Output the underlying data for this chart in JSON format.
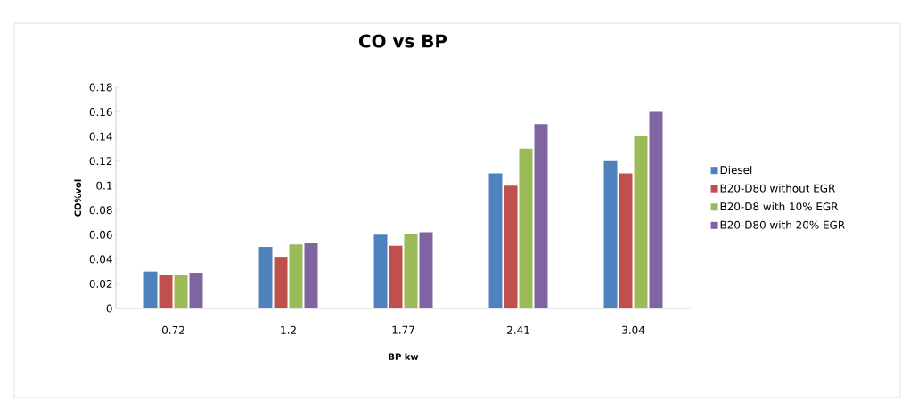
{
  "chart_data": {
    "type": "bar",
    "title": "CO vs BP",
    "xlabel": "BP kw",
    "ylabel": "CO%vol",
    "categories": [
      "0.72",
      "1.2",
      "1.77",
      "2.41",
      "3.04"
    ],
    "series": [
      {
        "name": "Diesel",
        "color": "#4f81bd",
        "values": [
          0.03,
          0.05,
          0.06,
          0.11,
          0.12
        ]
      },
      {
        "name": "B20-D80 without EGR",
        "color": "#c0504d",
        "values": [
          0.027,
          0.042,
          0.051,
          0.1,
          0.11
        ]
      },
      {
        "name": "B20-D8 with  10% EGR",
        "color": "#9bbb59",
        "values": [
          0.027,
          0.052,
          0.061,
          0.13,
          0.14
        ]
      },
      {
        "name": "B20-D80 with  20% EGR",
        "color": "#8064a2",
        "values": [
          0.029,
          0.053,
          0.062,
          0.15,
          0.16
        ]
      }
    ],
    "ylim": [
      0,
      0.18
    ],
    "yticks": [
      0,
      0.02,
      0.04,
      0.06,
      0.08,
      0.1,
      0.12,
      0.14,
      0.16,
      0.18
    ],
    "grid": false,
    "legend": "right"
  }
}
